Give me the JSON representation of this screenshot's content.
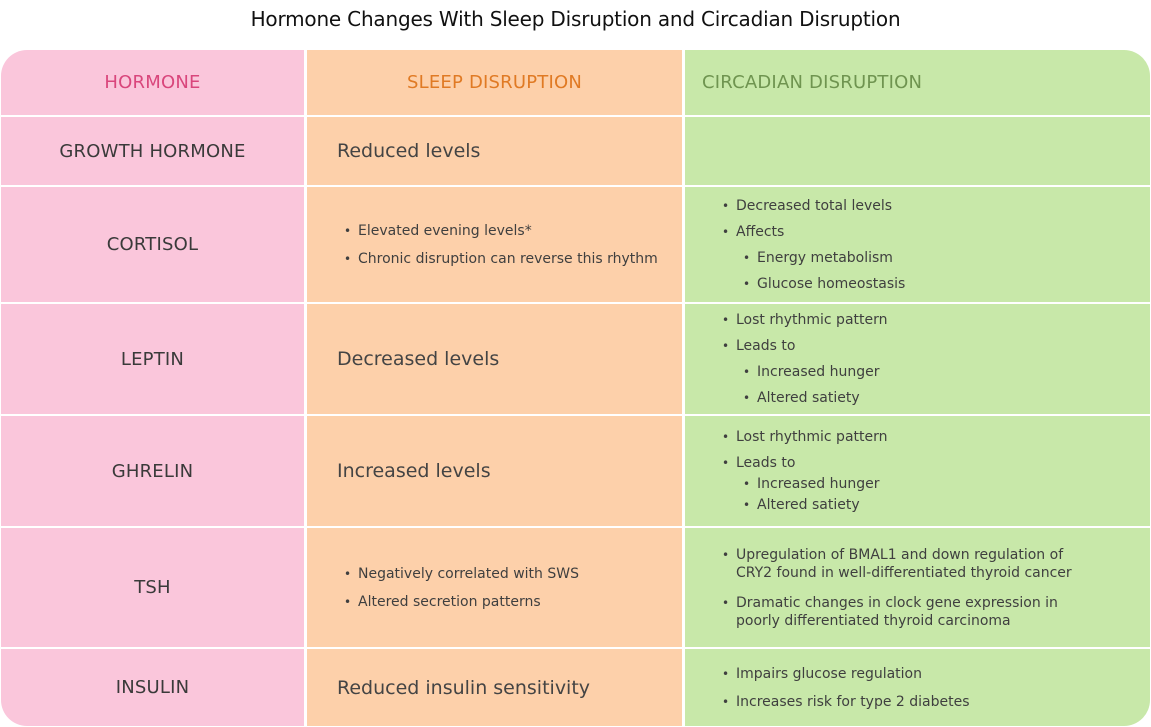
{
  "title": "Hormone Changes With Sleep Disruption and Circadian Disruption",
  "colors": {
    "hormone_col": "#fac6db",
    "sleep_col": "#fdd0aa",
    "circadian_col": "#c8e8a9"
  },
  "headers": {
    "hormone": "HORMONE",
    "sleep": "SLEEP DISRUPTION",
    "circadian": "CIRCADIAN DISRUPTION"
  },
  "rows": [
    {
      "hormone": "GROWTH HORMONE",
      "sleep": "Reduced levels"
    },
    {
      "hormone": "CORTISOL",
      "sleep_items": [
        "Elevated evening levels*",
        "Chronic disruption can reverse this rhythm"
      ],
      "circ_items": [
        "Decreased total levels",
        "Affects",
        "Energy metabolism",
        "Glucose homeostasis"
      ]
    },
    {
      "hormone": "LEPTIN",
      "sleep": "Decreased levels",
      "circ_items": [
        "Lost rhythmic pattern",
        "Leads to",
        "Increased hunger",
        "Altered satiety"
      ]
    },
    {
      "hormone": "GHRELIN",
      "sleep": "Increased levels",
      "circ_items": [
        "Lost rhythmic pattern",
        "Leads to",
        "Increased hunger",
        "Altered satiety"
      ]
    },
    {
      "hormone": "TSH",
      "sleep_items": [
        "Negatively correlated with SWS",
        "Altered secretion patterns"
      ],
      "circ_items": [
        "Upregulation of BMAL1 and down regulation of CRY2 found in well-differentiated thyroid cancer",
        "Dramatic changes in clock gene expression in poorly differentiated thyroid carcinoma"
      ]
    },
    {
      "hormone": "INSULIN",
      "sleep": "Reduced insulin sensitivity",
      "circ_items": [
        "Impairs glucose regulation",
        "Increases risk for type 2 diabetes"
      ]
    }
  ]
}
